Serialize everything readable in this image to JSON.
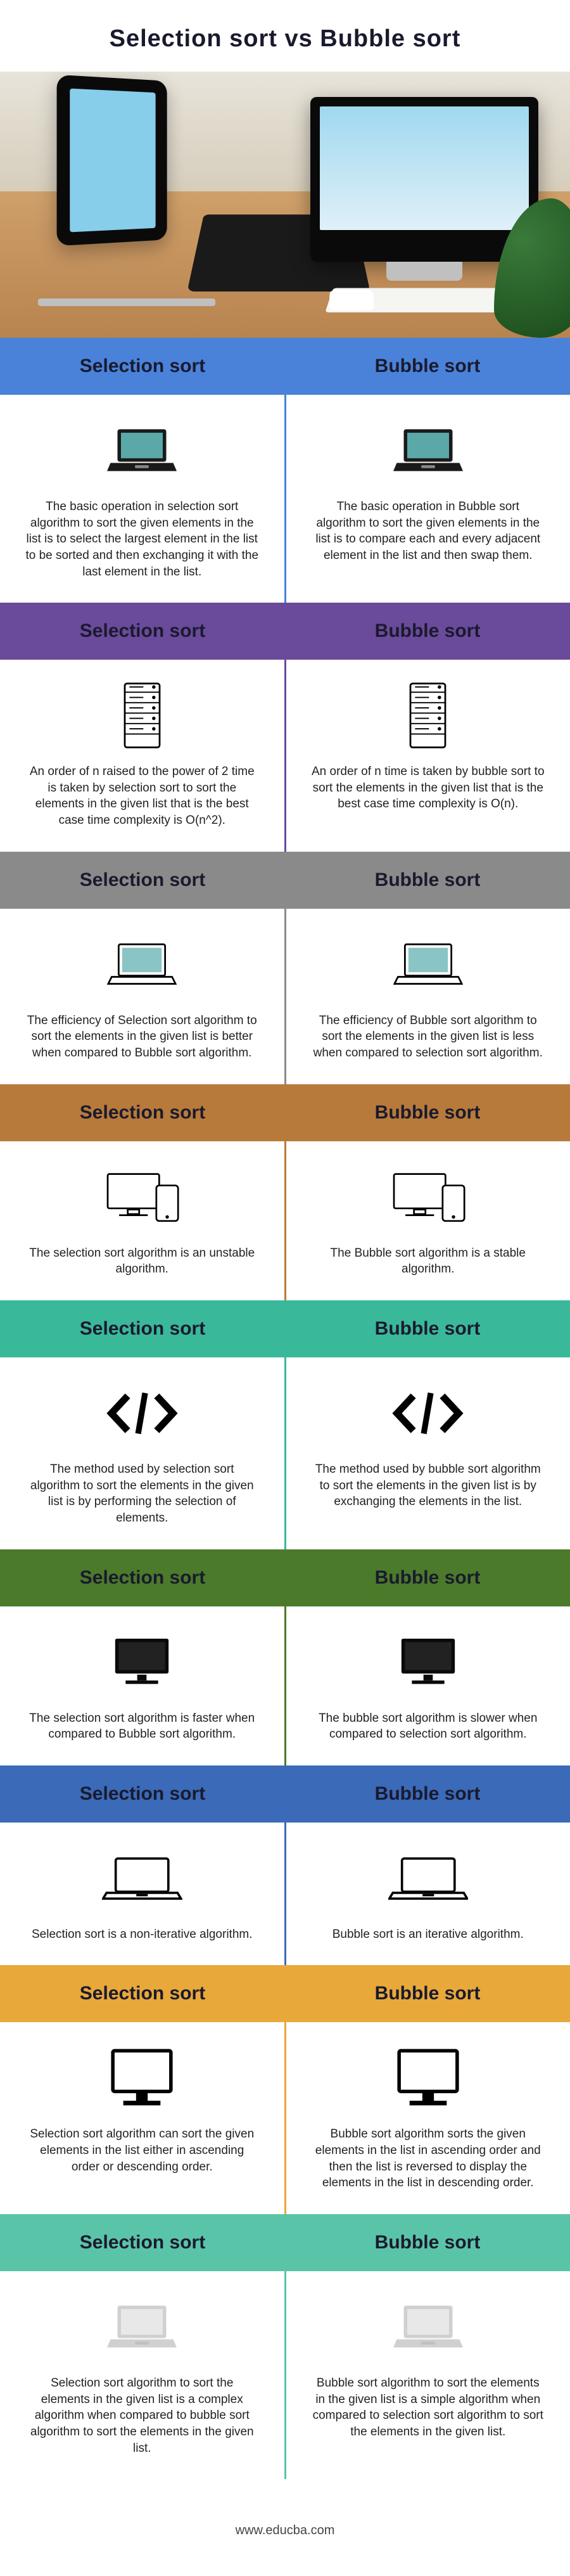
{
  "title": "Selection sort vs Bubble sort",
  "footer": "www.educba.com",
  "left_label": "Selection sort",
  "right_label": "Bubble sort",
  "sections": [
    {
      "header_color": "#4a82d9",
      "divider": "#4a82d9",
      "icon": "laptop-filled",
      "left": "The basic operation in selection sort algorithm to sort the given elements in the list is to select the largest element in the list to be sorted and then exchanging it with the last element in the list.",
      "right": "The basic operation in Bubble sort algorithm to sort the given elements in the list is to compare each and every adjacent element in the list and then swap them."
    },
    {
      "header_color": "#6a4a9a",
      "divider": "#6a4a9a",
      "icon": "server",
      "left": "An order of n raised to the power of 2 time is taken by selection sort to sort the elements in the given list that is the best case time complexity is O(n^2).",
      "right": "An order of n time is taken by bubble sort to sort the elements in the given list that is the best case time complexity is O(n)."
    },
    {
      "header_color": "#8a8a8a",
      "divider": "#8a8a8a",
      "icon": "laptop-outline",
      "left": "The efficiency of Selection sort algorithm to sort the elements in the given list is better when compared to Bubble sort algorithm.",
      "right": "The efficiency of Bubble sort algorithm to sort the elements in the given list is less when compared to selection sort algorithm."
    },
    {
      "header_color": "#b87a3a",
      "divider": "#b87a3a",
      "icon": "devices-outline",
      "left": "The selection sort algorithm is an unstable algorithm.",
      "right": "The Bubble sort algorithm is a stable algorithm."
    },
    {
      "header_color": "#3ab89a",
      "divider": "#3ab89a",
      "icon": "code",
      "left": "The method used by selection sort algorithm to sort the elements in the given list is by performing the selection of elements.",
      "right": "The method used by bubble sort algorithm to sort the elements in the given list is by exchanging the elements in the list."
    },
    {
      "header_color": "#4a7a2a",
      "divider": "#4a7a2a",
      "icon": "monitor-filled",
      "left": "The selection sort algorithm is faster when compared to Bubble sort algorithm.",
      "right": "The bubble sort algorithm is slower when compared to selection sort algorithm."
    },
    {
      "header_color": "#3a6ab8",
      "divider": "#3a6ab8",
      "icon": "laptop-simple",
      "left": "Selection sort is a non-iterative algorithm.",
      "right": "Bubble sort is an iterative algorithm."
    },
    {
      "header_color": "#e8a83a",
      "divider": "#e8a83a",
      "icon": "monitor-bold",
      "left": "Selection sort algorithm can sort the given elements in the list either in ascending order or descending order.",
      "right": "Bubble sort algorithm sorts the given elements in the list in ascending order and then the list is reversed to display the elements in the list in descending order."
    },
    {
      "header_color": "#5ac4a8",
      "divider": "#5ac4a8",
      "icon": "laptop-grey",
      "left": "Selection sort algorithm to sort the elements in the given list is a complex algorithm when compared to bubble sort algorithm to sort the elements in the given list.",
      "right": "Bubble sort algorithm to sort the elements in the given list is a simple algorithm when compared to selection sort algorithm to sort the elements in the given list."
    }
  ]
}
